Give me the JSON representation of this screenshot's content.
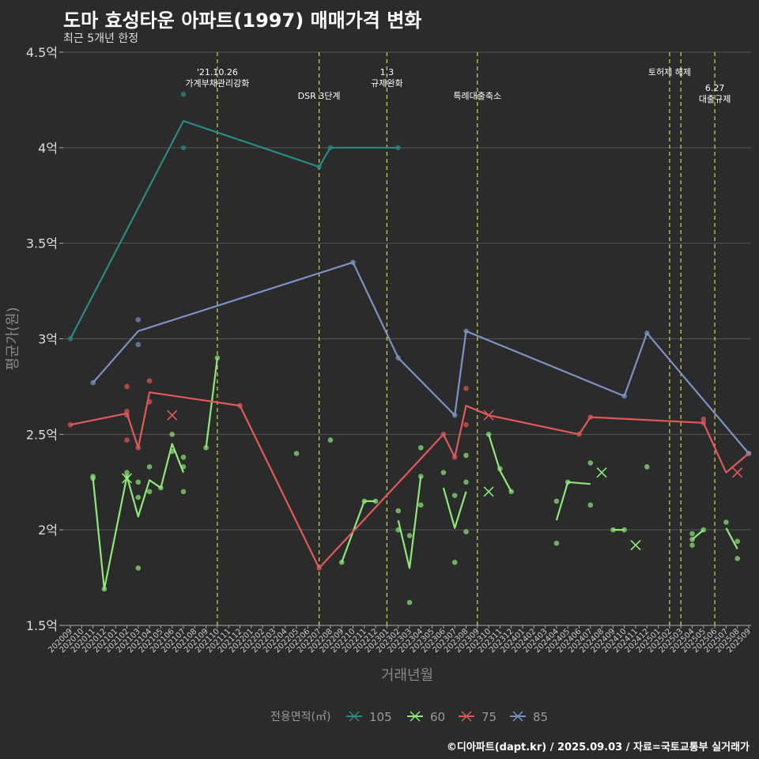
{
  "header": {
    "title": "도마 효성타운 아파트(1997) 매매가격 변화",
    "subtitle": "최근 5개년 한정"
  },
  "caption": "©디아파트(dapt.kr) / 2025.09.03 / 자료=국토교통부 실거래가",
  "chart_data": {
    "type": "line",
    "xlabel": "거래년월",
    "ylabel": "평균가(원)",
    "ylim": [
      1.5,
      4.5
    ],
    "yticks": [
      1.5,
      2,
      2.5,
      3,
      3.5,
      4,
      4.5
    ],
    "ytick_labels": [
      "1.5억",
      "2억",
      "2.5억",
      "3억",
      "3.5억",
      "4억",
      "4.5억"
    ],
    "x_start": "202009",
    "x_end": "202509",
    "legend_title": "전용면적(㎡)",
    "legend_position": "bottom",
    "colors": {
      "105": "#2a8a84",
      "60": "#8ee87a",
      "75": "#e05a5a",
      "85": "#7b93c3",
      "guide": "#d6d64a",
      "grid": "#555555"
    },
    "annotations": [
      {
        "x": "202110",
        "lines": [
          "'21.10.26",
          "가계부채관리강화"
        ],
        "level": 0
      },
      {
        "x": "202207",
        "lines": [
          "DSR 3단계"
        ],
        "level": 1
      },
      {
        "x": "202301",
        "lines": [
          "1.3",
          "규제완화"
        ],
        "level": 0
      },
      {
        "x": "202309",
        "lines": [
          "특례대출축소"
        ],
        "level": 1
      },
      {
        "x": "202502",
        "lines": [
          "토허제 해제"
        ],
        "level": 0
      },
      {
        "x": "202503",
        "lines": [],
        "level": 0
      },
      {
        "x": "202506",
        "lines": [
          "6.27",
          "대출규제"
        ],
        "level": 2
      }
    ],
    "series": [
      {
        "name": "105",
        "line": [
          [
            "202009",
            3.0
          ],
          [
            "202107",
            4.14
          ],
          [
            "202207",
            3.9
          ],
          [
            "202208",
            4.0
          ],
          [
            "202302",
            4.0
          ]
        ],
        "points": [
          [
            "202009",
            3.0
          ],
          [
            "202107",
            4.28
          ],
          [
            "202107",
            4.0
          ],
          [
            "202207",
            3.9
          ],
          [
            "202208",
            4.0
          ],
          [
            "202302",
            4.0
          ]
        ],
        "cross": []
      },
      {
        "name": "60",
        "line": [
          [
            [
              "202011",
              2.27
            ],
            [
              "202012",
              1.69
            ],
            [
              "202102",
              2.28
            ],
            [
              "202103",
              2.07
            ],
            [
              "202104",
              2.26
            ],
            [
              "202105",
              2.22
            ],
            [
              "202106",
              2.45
            ],
            [
              "202107",
              2.3
            ]
          ],
          [
            [
              "202109",
              2.43
            ],
            [
              "202110",
              2.9
            ]
          ],
          [
            [
              "202209",
              1.83
            ],
            [
              "202211",
              2.15
            ],
            [
              "202212",
              2.15
            ]
          ],
          [
            [
              "202302",
              2.05
            ],
            [
              "202303",
              1.8
            ],
            [
              "202304",
              2.28
            ]
          ],
          [
            [
              "202306",
              2.22
            ],
            [
              "202307",
              2.01
            ],
            [
              "202308",
              2.2
            ]
          ],
          [
            [
              "202310",
              2.5
            ],
            [
              "202311",
              2.31
            ],
            [
              "202312",
              2.2
            ]
          ],
          [
            [
              "202404",
              2.05
            ],
            [
              "202405",
              2.25
            ],
            [
              "202407",
              2.24
            ]
          ],
          [
            [
              "202409",
              2.0
            ],
            [
              "202410",
              2.0
            ]
          ],
          [
            [
              "202504",
              1.95
            ],
            [
              "202505",
              2.0
            ]
          ],
          [
            [
              "202507",
              2.01
            ],
            [
              "202508",
              1.9
            ]
          ]
        ],
        "points": [
          [
            "202011",
            2.28
          ],
          [
            "202011",
            2.27
          ],
          [
            "202012",
            1.69
          ],
          [
            "202102",
            2.3
          ],
          [
            "202102",
            2.28
          ],
          [
            "202103",
            2.25
          ],
          [
            "202103",
            2.17
          ],
          [
            "202103",
            1.8
          ],
          [
            "202104",
            2.33
          ],
          [
            "202104",
            2.2
          ],
          [
            "202105",
            2.22
          ],
          [
            "202106",
            2.5
          ],
          [
            "202106",
            2.41
          ],
          [
            "202107",
            2.38
          ],
          [
            "202107",
            2.33
          ],
          [
            "202107",
            2.2
          ],
          [
            "202109",
            2.43
          ],
          [
            "202110",
            2.9
          ],
          [
            "202205",
            2.4
          ],
          [
            "202208",
            2.47
          ],
          [
            "202209",
            1.83
          ],
          [
            "202211",
            2.15
          ],
          [
            "202212",
            2.15
          ],
          [
            "202302",
            2.1
          ],
          [
            "202302",
            2.0
          ],
          [
            "202303",
            1.97
          ],
          [
            "202303",
            1.62
          ],
          [
            "202304",
            2.43
          ],
          [
            "202304",
            2.28
          ],
          [
            "202304",
            2.13
          ],
          [
            "202306",
            2.3
          ],
          [
            "202307",
            2.18
          ],
          [
            "202307",
            1.83
          ],
          [
            "202308",
            2.39
          ],
          [
            "202308",
            2.25
          ],
          [
            "202308",
            1.99
          ],
          [
            "202310",
            2.5
          ],
          [
            "202311",
            2.32
          ],
          [
            "202312",
            2.2
          ],
          [
            "202404",
            2.15
          ],
          [
            "202404",
            1.93
          ],
          [
            "202405",
            2.25
          ],
          [
            "202407",
            2.35
          ],
          [
            "202407",
            2.13
          ],
          [
            "202409",
            2.0
          ],
          [
            "202410",
            2.0
          ],
          [
            "202412",
            2.33
          ],
          [
            "202504",
            1.98
          ],
          [
            "202504",
            1.95
          ],
          [
            "202504",
            1.92
          ],
          [
            "202505",
            2.0
          ],
          [
            "202507",
            2.04
          ],
          [
            "202508",
            1.94
          ],
          [
            "202508",
            1.85
          ]
        ],
        "cross": [
          [
            "202102",
            2.27
          ],
          [
            "202310",
            2.2
          ],
          [
            "202408",
            2.3
          ],
          [
            "202411",
            1.92
          ]
        ]
      },
      {
        "name": "75",
        "line": [
          [
            "202009",
            2.55
          ],
          [
            "202102",
            2.61
          ],
          [
            "202102",
            2.61
          ],
          [
            "202103",
            2.43
          ],
          [
            "202104",
            2.72
          ],
          [
            "202112",
            2.65
          ],
          [
            "202207",
            1.8
          ],
          [
            "202306",
            2.5
          ],
          [
            "202307",
            2.38
          ],
          [
            "202308",
            2.65
          ],
          [
            "202310",
            2.6
          ],
          [
            "202406",
            2.5
          ],
          [
            "202407",
            2.59
          ],
          [
            "202505",
            2.56
          ],
          [
            "202507",
            2.3
          ],
          [
            "202509",
            2.4
          ]
        ],
        "points": [
          [
            "202009",
            2.55
          ],
          [
            "202102",
            2.62
          ],
          [
            "202102",
            2.6
          ],
          [
            "202102",
            2.75
          ],
          [
            "202102",
            2.47
          ],
          [
            "202103",
            2.43
          ],
          [
            "202104",
            2.78
          ],
          [
            "202104",
            2.67
          ],
          [
            "202112",
            2.65
          ],
          [
            "202207",
            1.8
          ],
          [
            "202306",
            2.5
          ],
          [
            "202307",
            2.38
          ],
          [
            "202308",
            2.74
          ],
          [
            "202308",
            2.55
          ],
          [
            "202406",
            2.5
          ],
          [
            "202407",
            2.59
          ],
          [
            "202505",
            2.58
          ],
          [
            "202505",
            2.56
          ],
          [
            "202509",
            2.4
          ]
        ],
        "cross": [
          [
            "202106",
            2.6
          ],
          [
            "202310",
            2.6
          ],
          [
            "202508",
            2.3
          ]
        ]
      },
      {
        "name": "85",
        "line": [
          [
            "202011",
            2.77
          ],
          [
            "202103",
            3.04
          ],
          [
            "202210",
            3.4
          ],
          [
            "202302",
            2.9
          ],
          [
            "202307",
            2.6
          ],
          [
            "202308",
            3.04
          ],
          [
            "202410",
            2.7
          ],
          [
            "202412",
            3.03
          ],
          [
            "202509",
            2.4
          ]
        ],
        "points": [
          [
            "202011",
            2.77
          ],
          [
            "202103",
            3.1
          ],
          [
            "202103",
            2.97
          ],
          [
            "202210",
            3.4
          ],
          [
            "202302",
            2.9
          ],
          [
            "202307",
            2.6
          ],
          [
            "202308",
            3.04
          ],
          [
            "202410",
            2.7
          ],
          [
            "202412",
            3.03
          ],
          [
            "202509",
            2.4
          ]
        ],
        "cross": []
      }
    ]
  }
}
